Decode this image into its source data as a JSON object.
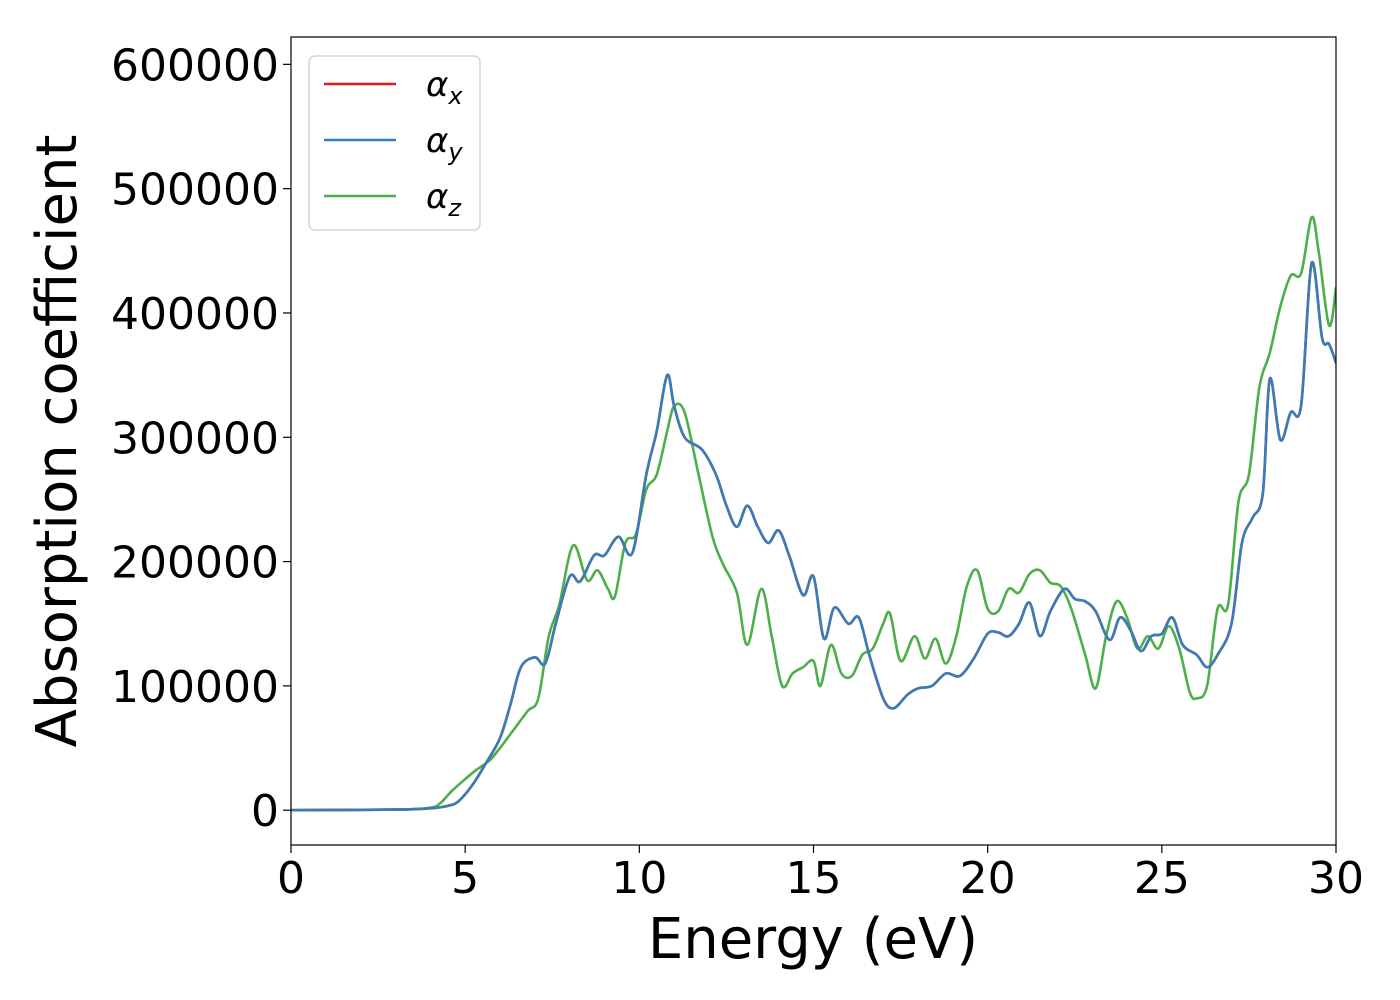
{
  "chart_data": {
    "type": "line",
    "title": "",
    "xlabel": "Energy (eV)",
    "ylabel": "Absorption coefficient",
    "xlim": [
      0,
      30
    ],
    "ylim": [
      -28000,
      622000
    ],
    "xticks": [
      0,
      5,
      10,
      15,
      20,
      25,
      30
    ],
    "yticks": [
      0,
      100000,
      200000,
      300000,
      400000,
      500000,
      600000
    ],
    "grid": false,
    "legend_position": "top-left",
    "series": [
      {
        "name": "α",
        "subscript": "x",
        "color": "#e41a1c",
        "x": [
          0,
          3,
          4,
          4.5,
          4.8,
          5.2,
          5.6,
          6.0,
          6.3,
          6.6,
          7.0,
          7.3,
          7.6,
          8.0,
          8.3,
          8.7,
          9.0,
          9.4,
          9.8,
          10.2,
          10.5,
          10.8,
          11.0,
          11.3,
          11.8,
          12.2,
          12.5,
          12.8,
          13.1,
          13.4,
          13.7,
          14.0,
          14.3,
          14.7,
          15.0,
          15.3,
          15.6,
          16.0,
          16.3,
          16.6,
          17.0,
          17.3,
          17.7,
          18.0,
          18.4,
          18.8,
          19.2,
          19.6,
          20.0,
          20.3,
          20.6,
          20.9,
          21.2,
          21.5,
          21.8,
          22.2,
          22.5,
          22.8,
          23.1,
          23.5,
          23.8,
          24.1,
          24.4,
          24.7,
          25.0,
          25.3,
          25.6,
          26.0,
          26.3,
          26.6,
          27.0,
          27.3,
          27.6,
          27.9,
          28.1,
          28.4,
          28.7,
          29.0,
          29.3,
          29.6,
          29.8,
          30.0
        ],
        "values": [
          0,
          500,
          1500,
          3500,
          7000,
          20000,
          38000,
          58000,
          85000,
          115000,
          123000,
          118000,
          150000,
          188000,
          184000,
          205000,
          205000,
          220000,
          207000,
          270000,
          305000,
          350000,
          325000,
          300000,
          290000,
          270000,
          245000,
          228000,
          245000,
          228000,
          215000,
          225000,
          205000,
          173000,
          188000,
          138000,
          163000,
          150000,
          155000,
          125000,
          90000,
          82000,
          93000,
          98000,
          100000,
          110000,
          108000,
          122000,
          142000,
          143000,
          140000,
          150000,
          167000,
          140000,
          160000,
          178000,
          170000,
          168000,
          160000,
          137000,
          155000,
          145000,
          128000,
          140000,
          142000,
          155000,
          133000,
          125000,
          115000,
          125000,
          150000,
          215000,
          235000,
          255000,
          347000,
          298000,
          320000,
          326000,
          440000,
          380000,
          375000,
          360000
        ]
      },
      {
        "name": "α",
        "subscript": "y",
        "color": "#377eb8",
        "x": [
          0,
          3,
          4,
          4.5,
          4.8,
          5.2,
          5.6,
          6.0,
          6.3,
          6.6,
          7.0,
          7.3,
          7.6,
          8.0,
          8.3,
          8.7,
          9.0,
          9.4,
          9.8,
          10.2,
          10.5,
          10.8,
          11.0,
          11.3,
          11.8,
          12.2,
          12.5,
          12.8,
          13.1,
          13.4,
          13.7,
          14.0,
          14.3,
          14.7,
          15.0,
          15.3,
          15.6,
          16.0,
          16.3,
          16.6,
          17.0,
          17.3,
          17.7,
          18.0,
          18.4,
          18.8,
          19.2,
          19.6,
          20.0,
          20.3,
          20.6,
          20.9,
          21.2,
          21.5,
          21.8,
          22.2,
          22.5,
          22.8,
          23.1,
          23.5,
          23.8,
          24.1,
          24.4,
          24.7,
          25.0,
          25.3,
          25.6,
          26.0,
          26.3,
          26.6,
          27.0,
          27.3,
          27.6,
          27.9,
          28.1,
          28.4,
          28.7,
          29.0,
          29.3,
          29.6,
          29.8,
          30.0
        ],
        "values": [
          0,
          500,
          1500,
          3500,
          7000,
          20000,
          38000,
          58000,
          85000,
          115000,
          123000,
          118000,
          150000,
          188000,
          184000,
          205000,
          205000,
          220000,
          207000,
          270000,
          305000,
          350000,
          325000,
          300000,
          290000,
          270000,
          245000,
          228000,
          245000,
          228000,
          215000,
          225000,
          205000,
          173000,
          188000,
          138000,
          163000,
          150000,
          155000,
          125000,
          90000,
          82000,
          93000,
          98000,
          100000,
          110000,
          108000,
          122000,
          142000,
          143000,
          140000,
          150000,
          167000,
          140000,
          160000,
          178000,
          170000,
          168000,
          160000,
          137000,
          155000,
          145000,
          128000,
          140000,
          142000,
          155000,
          133000,
          125000,
          115000,
          125000,
          150000,
          215000,
          235000,
          255000,
          347000,
          298000,
          320000,
          326000,
          440000,
          380000,
          375000,
          360000
        ]
      },
      {
        "name": "α",
        "subscript": "z",
        "color": "#4daf4a",
        "x": [
          0,
          3,
          4,
          4.3,
          4.6,
          5.0,
          5.3,
          5.7,
          6.0,
          6.4,
          6.8,
          7.1,
          7.4,
          7.7,
          8.1,
          8.5,
          8.8,
          9.1,
          9.3,
          9.6,
          9.9,
          10.2,
          10.5,
          10.8,
          11.0,
          11.3,
          11.7,
          12.1,
          12.4,
          12.8,
          13.1,
          13.5,
          13.8,
          14.1,
          14.4,
          14.7,
          15.0,
          15.2,
          15.5,
          15.8,
          16.1,
          16.4,
          16.7,
          17.0,
          17.2,
          17.5,
          17.9,
          18.2,
          18.5,
          18.8,
          19.1,
          19.4,
          19.7,
          20.0,
          20.3,
          20.6,
          20.9,
          21.2,
          21.5,
          21.8,
          22.1,
          22.4,
          22.8,
          23.1,
          23.4,
          23.7,
          24.0,
          24.3,
          24.6,
          24.9,
          25.2,
          25.5,
          25.8,
          26.0,
          26.3,
          26.6,
          26.9,
          27.2,
          27.5,
          27.8,
          28.1,
          28.4,
          28.7,
          29.0,
          29.3,
          29.5,
          29.8,
          30.0
        ],
        "values": [
          0,
          500,
          2000,
          6000,
          15000,
          25000,
          32000,
          40000,
          50000,
          65000,
          80000,
          90000,
          140000,
          165000,
          213000,
          185000,
          193000,
          178000,
          172000,
          215000,
          222000,
          258000,
          270000,
          305000,
          325000,
          320000,
          270000,
          220000,
          198000,
          175000,
          133000,
          178000,
          140000,
          100000,
          110000,
          115000,
          120000,
          100000,
          133000,
          110000,
          108000,
          125000,
          130000,
          150000,
          158000,
          120000,
          140000,
          122000,
          138000,
          118000,
          140000,
          180000,
          193000,
          162000,
          160000,
          178000,
          175000,
          190000,
          193000,
          183000,
          180000,
          162000,
          125000,
          98000,
          140000,
          168000,
          155000,
          130000,
          140000,
          130000,
          148000,
          130000,
          95000,
          90000,
          100000,
          162000,
          165000,
          248000,
          270000,
          340000,
          368000,
          405000,
          430000,
          432000,
          477000,
          450000,
          390000,
          420000
        ]
      }
    ]
  }
}
